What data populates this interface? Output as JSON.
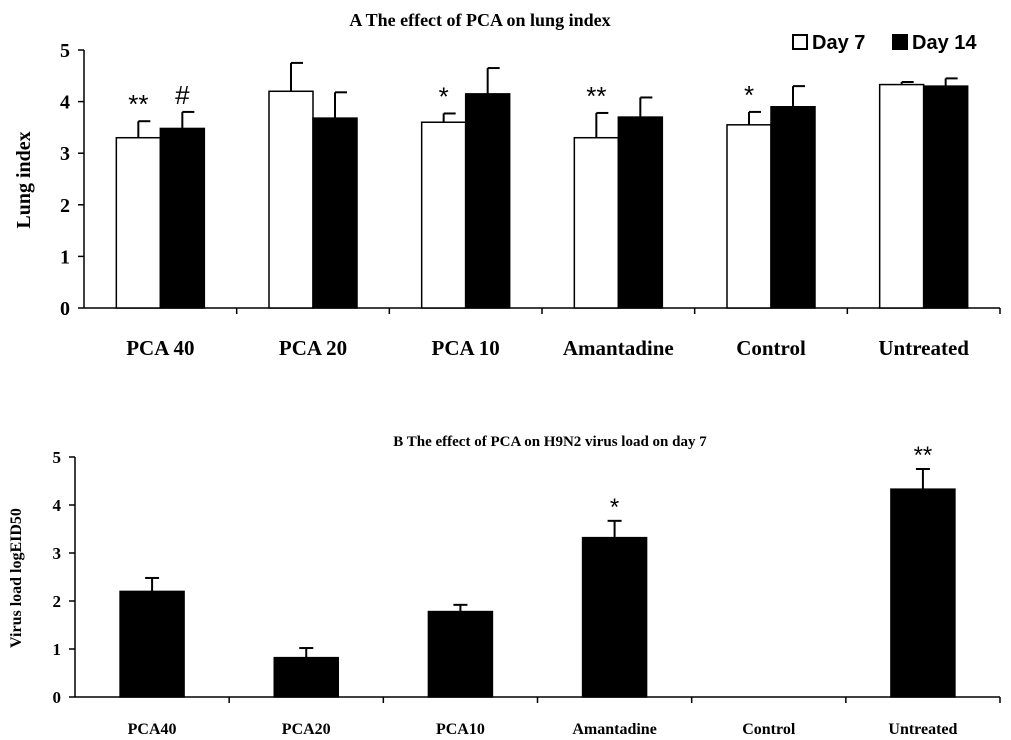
{
  "chart_data": [
    {
      "type": "bar",
      "title": "A The effect of PCA on lung index",
      "ylabel": "Lung index",
      "xlabel": "",
      "ylim": [
        0,
        5
      ],
      "yticks": [
        "0",
        "1",
        "2",
        "3",
        "4",
        "5"
      ],
      "categories": [
        "PCA 40",
        "PCA 20",
        "PCA 10",
        "Amantadine",
        "Control",
        "Untreated"
      ],
      "series": [
        {
          "name": "Day 7",
          "fill": "#ffffff",
          "values": [
            3.3,
            4.2,
            3.6,
            3.3,
            3.55,
            4.33
          ],
          "errors": [
            0.32,
            0.55,
            0.17,
            0.48,
            0.25,
            0.05
          ]
        },
        {
          "name": "Day 14",
          "fill": "#000000",
          "values": [
            3.48,
            3.68,
            4.15,
            3.7,
            3.9,
            4.3
          ],
          "errors": [
            0.32,
            0.5,
            0.5,
            0.38,
            0.4,
            0.15
          ]
        }
      ],
      "annotations": [
        {
          "category": 0,
          "series": 0,
          "text": "**"
        },
        {
          "category": 0,
          "series": 1,
          "text": "#"
        },
        {
          "category": 2,
          "series": 0,
          "text": "*"
        },
        {
          "category": 3,
          "series": 0,
          "text": "**"
        },
        {
          "category": 4,
          "series": 0,
          "text": "*"
        }
      ],
      "legend": "top-right",
      "grid": false
    },
    {
      "type": "bar",
      "title": "B The effect of PCA on H9N2 virus load on day 7",
      "ylabel": "Virus load logEID50",
      "xlabel": "",
      "ylim": [
        0,
        5
      ],
      "yticks": [
        "0",
        "1",
        "2",
        "3",
        "4",
        "5"
      ],
      "categories": [
        "PCA40",
        "PCA20",
        "PCA10",
        "Amantadine",
        "Control",
        "Untreated"
      ],
      "values": [
        2.2,
        0.82,
        1.78,
        3.32,
        0,
        4.33
      ],
      "errors": [
        0.28,
        0.2,
        0.14,
        0.35,
        0,
        0.42
      ],
      "fill": "#000000",
      "annotations": [
        {
          "category": 3,
          "text": "*"
        },
        {
          "category": 5,
          "text": "**"
        }
      ],
      "grid": false
    }
  ]
}
